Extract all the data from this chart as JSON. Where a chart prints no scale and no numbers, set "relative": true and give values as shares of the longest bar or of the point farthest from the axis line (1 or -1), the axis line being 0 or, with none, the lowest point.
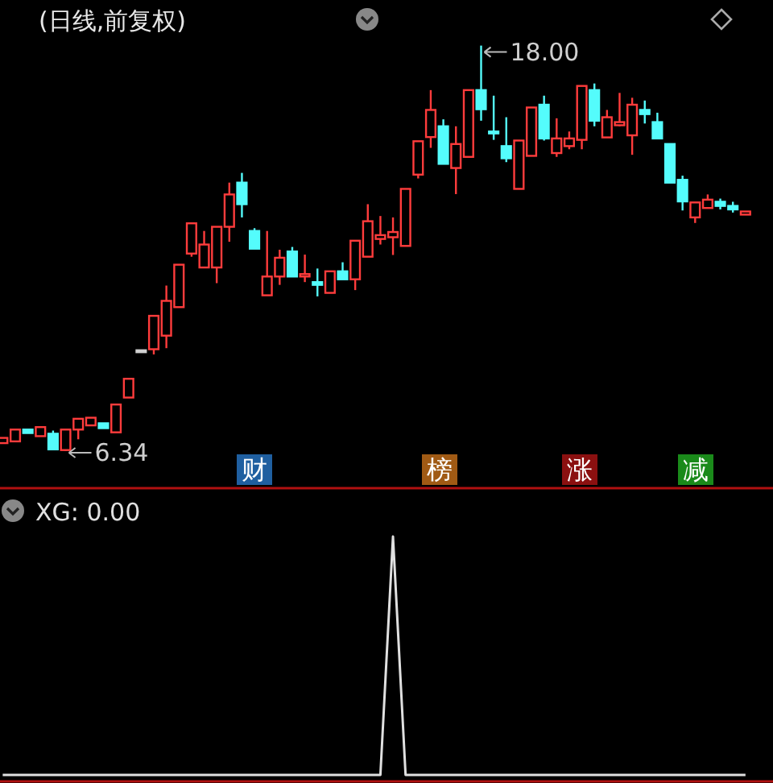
{
  "chart_data": [
    {
      "type": "candlestick",
      "title": "(日线,前复权)",
      "categories": [
        null,
        null,
        null,
        null,
        null,
        null,
        null,
        null,
        null,
        null,
        null,
        null,
        null,
        null,
        null,
        null,
        null,
        null,
        null,
        null,
        null,
        null,
        null,
        null,
        null,
        null,
        null,
        null,
        null,
        null,
        null,
        null,
        null,
        null,
        null,
        null,
        null,
        null,
        null,
        null,
        null,
        null,
        null,
        null,
        null,
        null,
        null,
        null,
        null,
        null,
        null,
        null,
        null,
        null,
        null,
        null,
        null,
        null,
        null,
        null
      ],
      "ohlc": [
        [
          6.57,
          6.72,
          6.57,
          6.72
        ],
        [
          6.62,
          6.96,
          6.62,
          6.96
        ],
        [
          6.96,
          6.96,
          6.86,
          6.86
        ],
        [
          6.77,
          7.03,
          6.77,
          7.03
        ],
        [
          6.84,
          6.93,
          6.39,
          6.39
        ],
        [
          6.37,
          6.96,
          6.34,
          6.96
        ],
        [
          6.96,
          7.27,
          6.68,
          7.27
        ],
        [
          7.08,
          7.3,
          7.08,
          7.3
        ],
        [
          7.14,
          7.14,
          7.0,
          7.0
        ],
        [
          6.88,
          7.68,
          6.88,
          7.68
        ],
        [
          7.88,
          8.42,
          7.88,
          8.42
        ],
        [
          9.24,
          9.24,
          9.24,
          9.24
        ],
        [
          9.27,
          10.23,
          9.12,
          10.23
        ],
        [
          9.66,
          11.1,
          9.3,
          10.66
        ],
        [
          10.48,
          11.7,
          10.48,
          11.7
        ],
        [
          12.02,
          12.89,
          11.93,
          12.89
        ],
        [
          11.62,
          12.67,
          11.62,
          12.28
        ],
        [
          11.62,
          12.79,
          11.17,
          12.79
        ],
        [
          12.79,
          14.06,
          12.36,
          13.72
        ],
        [
          14.06,
          14.34,
          13.06,
          13.44
        ],
        [
          12.67,
          12.75,
          12.16,
          12.16
        ],
        [
          10.82,
          12.67,
          10.82,
          11.36
        ],
        [
          11.36,
          12.13,
          11.12,
          11.9
        ],
        [
          12.08,
          12.21,
          11.36,
          11.36
        ],
        [
          11.36,
          11.99,
          11.2,
          11.43
        ],
        [
          11.2,
          11.59,
          10.79,
          11.12
        ],
        [
          10.89,
          11.51,
          10.89,
          11.51
        ],
        [
          11.51,
          11.77,
          11.28,
          11.28
        ],
        [
          11.28,
          12.39,
          10.97,
          12.39
        ],
        [
          11.93,
          13.44,
          11.93,
          12.95
        ],
        [
          12.44,
          13.1,
          12.28,
          12.55
        ],
        [
          12.49,
          13.06,
          11.98,
          12.64
        ],
        [
          12.24,
          13.88,
          12.24,
          13.88
        ],
        [
          14.29,
          15.25,
          14.18,
          15.25
        ],
        [
          15.37,
          16.72,
          15.06,
          16.15
        ],
        [
          15.68,
          15.88,
          14.6,
          14.6
        ],
        [
          14.48,
          15.68,
          13.73,
          15.17
        ],
        [
          14.8,
          16.72,
          14.8,
          16.72
        ],
        [
          16.72,
          18.0,
          15.84,
          16.17
        ],
        [
          15.53,
          16.56,
          15.29,
          15.48
        ],
        [
          15.11,
          15.94,
          14.65,
          14.76
        ],
        [
          13.88,
          15.27,
          13.88,
          15.27
        ],
        [
          14.83,
          16.22,
          14.83,
          16.22
        ],
        [
          16.3,
          16.56,
          15.27,
          15.33
        ],
        [
          14.91,
          15.91,
          14.8,
          15.33
        ],
        [
          15.11,
          15.53,
          15.02,
          15.33
        ],
        [
          15.29,
          16.84,
          15.02,
          16.84
        ],
        [
          16.72,
          16.91,
          15.68,
          15.84
        ],
        [
          15.36,
          16.15,
          15.36,
          15.94
        ],
        [
          15.71,
          16.64,
          15.68,
          15.8
        ],
        [
          15.42,
          16.5,
          14.86,
          16.3
        ],
        [
          16.15,
          16.42,
          15.76,
          16.03
        ],
        [
          15.8,
          16.07,
          15.33,
          15.33
        ],
        [
          15.17,
          15.17,
          14.06,
          14.06
        ],
        [
          14.14,
          14.26,
          13.26,
          13.52
        ],
        [
          13.06,
          13.49,
          12.9,
          13.49
        ],
        [
          13.33,
          13.72,
          13.33,
          13.57
        ],
        [
          13.51,
          13.6,
          13.29,
          13.39
        ],
        [
          13.39,
          13.51,
          13.2,
          13.29
        ],
        [
          13.14,
          13.23,
          13.14,
          13.23
        ]
      ],
      "annotations": [
        "18.00",
        "6.34",
        "财",
        "榜",
        "涨",
        "减"
      ]
    },
    {
      "type": "line",
      "title": "XG: 0.00",
      "relative": true,
      "color": "#e0e0e0",
      "categories": [
        null,
        null,
        null,
        null,
        null,
        null,
        null,
        null,
        null,
        null,
        null,
        null,
        null,
        null,
        null,
        null,
        null,
        null,
        null,
        null,
        null,
        null,
        null,
        null,
        null,
        null,
        null,
        null,
        null,
        null,
        null,
        null,
        null,
        null,
        null,
        null,
        null,
        null,
        null,
        null,
        null,
        null,
        null,
        null,
        null,
        null,
        null,
        null,
        null,
        null,
        null,
        null,
        null,
        null,
        null,
        null,
        null,
        null,
        null,
        null
      ],
      "values": [
        0,
        0,
        0,
        0,
        0,
        0,
        0,
        0,
        0,
        0,
        0,
        0,
        0,
        0,
        0,
        0,
        0,
        0,
        0,
        0,
        0,
        0,
        0,
        0,
        0,
        0,
        0,
        0,
        0,
        0,
        0,
        1,
        0,
        0,
        0,
        0,
        0,
        0,
        0,
        0,
        0,
        0,
        0,
        0,
        0,
        0,
        0,
        0,
        0,
        0,
        0,
        0,
        0,
        0,
        0,
        0,
        0,
        0,
        0,
        0
      ]
    }
  ]
}
